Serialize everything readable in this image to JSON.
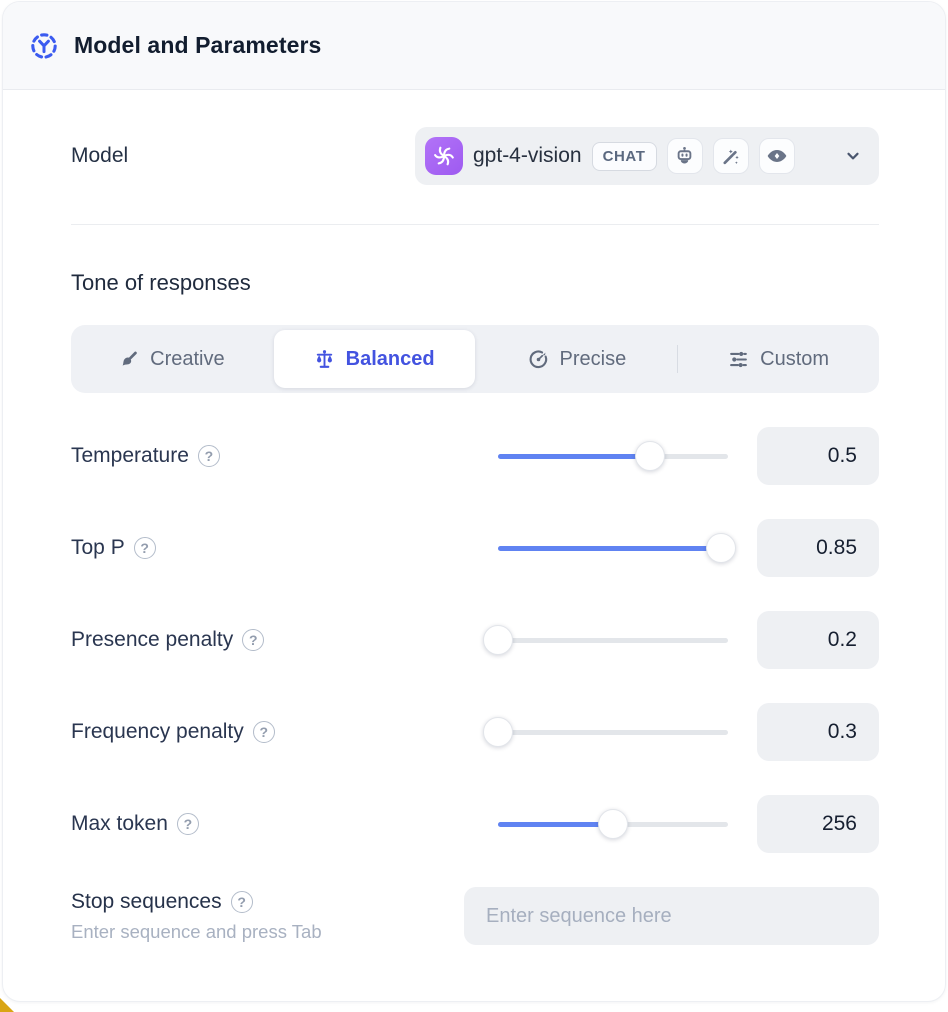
{
  "header": {
    "title": "Model and Parameters",
    "icon": "dashed-circle-model-icon"
  },
  "model_row": {
    "label": "Model",
    "selected_model": "gpt-4-vision",
    "provider_icon": "openai-logo-icon",
    "type_badge": "CHAT",
    "capability_icons": [
      "robot-icon",
      "magic-wand-icon",
      "vision-eye-icon"
    ],
    "dropdown_icon": "chevron-down-icon"
  },
  "tone": {
    "heading": "Tone of responses",
    "tabs": [
      {
        "label": "Creative",
        "icon": "paintbrush-icon",
        "active": false
      },
      {
        "label": "Balanced",
        "icon": "scales-icon",
        "active": true
      },
      {
        "label": "Precise",
        "icon": "target-icon",
        "active": false
      },
      {
        "label": "Custom",
        "icon": "sliders-icon",
        "active": false
      }
    ]
  },
  "parameters": [
    {
      "label": "Temperature",
      "value": "0.5",
      "fill_percent": 66
    },
    {
      "label": "Top P",
      "value": "0.85",
      "fill_percent": 97
    },
    {
      "label": "Presence penalty",
      "value": "0.2",
      "fill_percent": 0
    },
    {
      "label": "Frequency penalty",
      "value": "0.3",
      "fill_percent": 0
    },
    {
      "label": "Max token",
      "value": "256",
      "fill_percent": 50
    }
  ],
  "stop_sequences": {
    "label": "Stop sequences",
    "hint": "Enter sequence and press Tab",
    "placeholder": "Enter sequence here"
  },
  "ui": {
    "help_glyph": "?",
    "colors": {
      "accent_blue": "#6083f2",
      "active_tab_text": "#4353e0",
      "openai_purple": "#a766f6",
      "corner_accent_yellow": "#d9a514"
    }
  }
}
